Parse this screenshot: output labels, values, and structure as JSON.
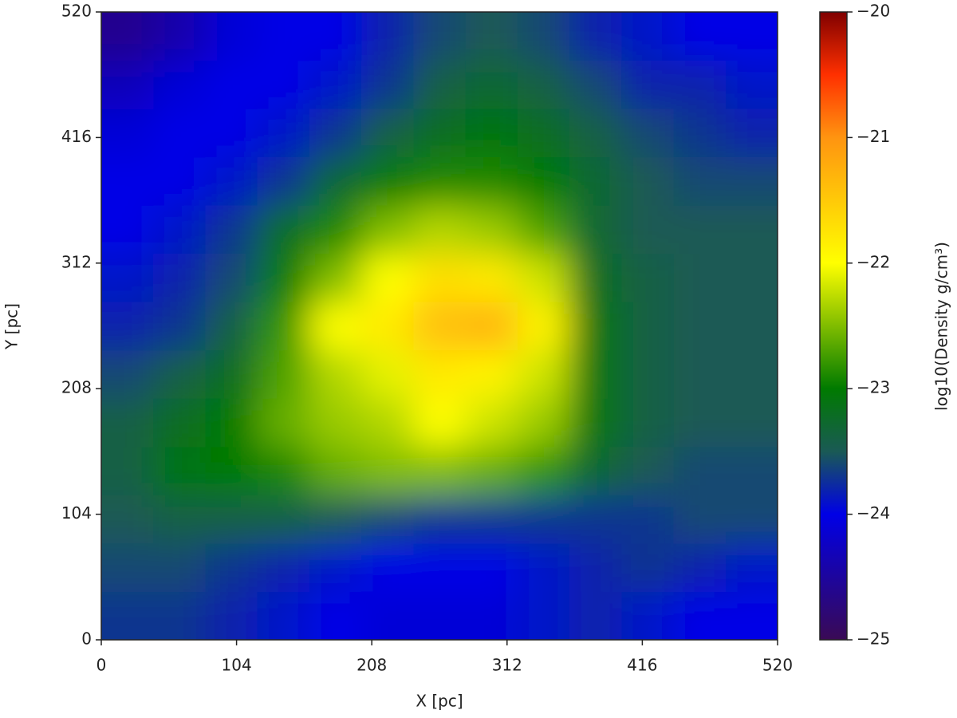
{
  "chart_data": {
    "type": "heatmap",
    "x_label": "X [pc]",
    "y_label": "Y [pc]",
    "colorbar_label": "log10(Density g/cm³)",
    "x": [
      20,
      60,
      100,
      140,
      180,
      220,
      260,
      300,
      340,
      380,
      420,
      460,
      500
    ],
    "y": [
      20,
      60,
      100,
      140,
      180,
      220,
      260,
      300,
      340,
      380,
      420,
      460,
      500
    ],
    "values": [
      [
        -23.7,
        -23.7,
        -23.8,
        -23.9,
        -24.0,
        -24.1,
        -24.1,
        -24.1,
        -23.9,
        -23.8,
        -23.9,
        -24.0,
        -24.0
      ],
      [
        -23.6,
        -23.6,
        -23.7,
        -23.8,
        -23.9,
        -24.0,
        -24.0,
        -24.0,
        -23.9,
        -23.8,
        -23.7,
        -23.8,
        -23.9
      ],
      [
        -23.5,
        -23.4,
        -23.4,
        -23.4,
        -23.5,
        -23.6,
        -23.7,
        -23.7,
        -23.7,
        -23.7,
        -23.7,
        -23.6,
        -23.6
      ],
      [
        -23.4,
        -23.1,
        -23.0,
        -22.9,
        -22.6,
        -22.5,
        -22.5,
        -22.6,
        -22.8,
        -23.3,
        -23.5,
        -23.6,
        -23.6
      ],
      [
        -23.4,
        -23.2,
        -23.0,
        -22.6,
        -22.4,
        -22.3,
        -22.0,
        -22.2,
        -22.4,
        -23.1,
        -23.4,
        -23.5,
        -23.5
      ],
      [
        -23.6,
        -23.4,
        -23.2,
        -22.7,
        -22.3,
        -22.1,
        -21.8,
        -21.9,
        -22.2,
        -23.1,
        -23.4,
        -23.5,
        -23.5
      ],
      [
        -23.8,
        -23.7,
        -23.4,
        -22.8,
        -22.0,
        -21.8,
        -21.4,
        -21.3,
        -21.9,
        -23.1,
        -23.4,
        -23.5,
        -23.5
      ],
      [
        -23.9,
        -23.8,
        -23.6,
        -23.0,
        -22.5,
        -22.0,
        -21.7,
        -21.8,
        -22.2,
        -23.2,
        -23.4,
        -23.5,
        -23.5
      ],
      [
        -24.0,
        -23.9,
        -23.7,
        -23.2,
        -22.9,
        -22.5,
        -22.3,
        -22.4,
        -22.7,
        -23.3,
        -23.5,
        -23.5,
        -23.5
      ],
      [
        -24.0,
        -24.0,
        -23.9,
        -23.7,
        -23.3,
        -23.0,
        -22.9,
        -22.9,
        -23.0,
        -23.3,
        -23.5,
        -23.6,
        -23.6
      ],
      [
        -24.1,
        -24.0,
        -24.0,
        -23.9,
        -23.7,
        -23.4,
        -23.2,
        -23.1,
        -23.2,
        -23.4,
        -23.6,
        -23.7,
        -23.8
      ],
      [
        -24.3,
        -24.1,
        -24.0,
        -24.0,
        -23.9,
        -23.7,
        -23.4,
        -23.3,
        -23.4,
        -23.6,
        -23.8,
        -23.8,
        -23.9
      ],
      [
        -24.6,
        -24.4,
        -24.1,
        -24.0,
        -24.0,
        -23.8,
        -23.6,
        -23.5,
        -23.6,
        -23.8,
        -23.9,
        -24.0,
        -24.0
      ]
    ],
    "xlim": [
      0,
      520
    ],
    "ylim": [
      0,
      520
    ],
    "xticks": [
      0,
      104,
      208,
      312,
      416,
      520
    ],
    "yticks": [
      0,
      104,
      208,
      312,
      416,
      520
    ],
    "clim": [
      -25,
      -20
    ],
    "cticks": [
      {
        "value": -25,
        "label": "−25"
      },
      {
        "value": -24,
        "label": "−24"
      },
      {
        "value": -23,
        "label": "−23"
      },
      {
        "value": -22,
        "label": "−22"
      },
      {
        "value": -21,
        "label": "−21"
      },
      {
        "value": -20,
        "label": "−20"
      }
    ],
    "colormap": [
      {
        "value": -25,
        "color": "#3a0a55"
      },
      {
        "value": -24,
        "color": "#0000e6"
      },
      {
        "value": -23.5,
        "color": "#1a5a55"
      },
      {
        "value": -23,
        "color": "#007a00"
      },
      {
        "value": -22,
        "color": "#ffff00"
      },
      {
        "value": -21,
        "color": "#ff9410"
      },
      {
        "value": -20.5,
        "color": "#ff3000"
      },
      {
        "value": -20,
        "color": "#800000"
      }
    ]
  }
}
